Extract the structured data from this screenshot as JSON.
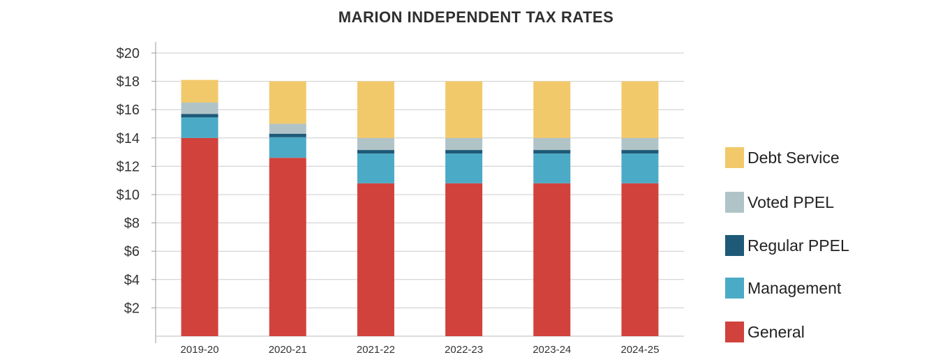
{
  "chart_data": {
    "type": "bar",
    "stacked": true,
    "title": "MARION INDEPENDENT TAX RATES",
    "xlabel": "",
    "ylabel": "",
    "categories": [
      "2019-20",
      "2020-21",
      "2021-22",
      "2022-23",
      "2023-24",
      "2024-25"
    ],
    "y_ticks": [
      "$2",
      "$4",
      "$6",
      "$8",
      "$10",
      "$12",
      "$14",
      "$16",
      "$18",
      "$20"
    ],
    "ylim": [
      0,
      20
    ],
    "grid": true,
    "legend_position": "right",
    "series": [
      {
        "name": "General",
        "color": "#D1423C",
        "values": [
          14.0,
          12.6,
          10.8,
          10.8,
          10.8,
          10.8
        ]
      },
      {
        "name": "Management",
        "color": "#4BABC6",
        "values": [
          1.45,
          1.45,
          2.1,
          2.1,
          2.1,
          2.1
        ]
      },
      {
        "name": "Regular PPEL",
        "color": "#1E5A78",
        "values": [
          0.25,
          0.25,
          0.25,
          0.25,
          0.25,
          0.25
        ]
      },
      {
        "name": "Voted PPEL",
        "color": "#B0C4C8",
        "values": [
          0.8,
          0.7,
          0.85,
          0.85,
          0.85,
          0.85
        ]
      },
      {
        "name": "Debt Service",
        "color": "#F2C96A",
        "values": [
          1.6,
          3.0,
          4.0,
          4.0,
          4.0,
          4.0
        ]
      }
    ],
    "legend_order": [
      "Debt Service",
      "Voted PPEL",
      "Regular PPEL",
      "Management",
      "General"
    ]
  }
}
